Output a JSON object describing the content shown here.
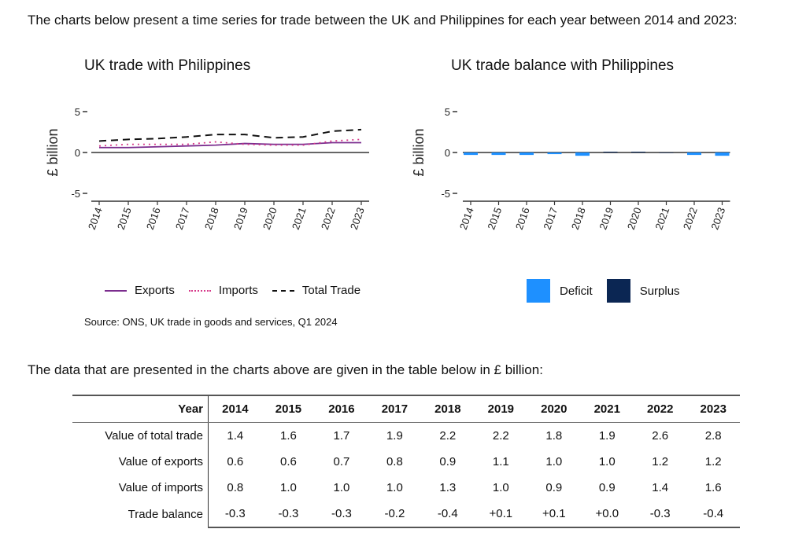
{
  "intro_text": "The charts below present a time series for trade between the UK and Philippines for each year between 2014 and 2023:",
  "chart1_title": "UK trade with Philippines",
  "chart2_title": "UK trade balance with Philippines",
  "chart_data": [
    {
      "type": "line",
      "title": "UK trade with Philippines",
      "xlabel": "",
      "ylabel": "£ billion",
      "ylim": [
        -5,
        5
      ],
      "yticks": [
        "5",
        "0",
        "-5"
      ],
      "grid": false,
      "legend_position": "bottom",
      "x": [
        "2014",
        "2015",
        "2016",
        "2017",
        "2018",
        "2019",
        "2020",
        "2021",
        "2022",
        "2023"
      ],
      "series": [
        {
          "name": "Exports",
          "values": [
            0.6,
            0.6,
            0.7,
            0.8,
            0.9,
            1.1,
            1.0,
            1.0,
            1.2,
            1.2
          ],
          "color": "#7b2d8e",
          "style": "solid"
        },
        {
          "name": "Imports",
          "values": [
            0.8,
            1.0,
            1.0,
            1.0,
            1.3,
            1.0,
            0.9,
            0.9,
            1.4,
            1.6
          ],
          "color": "#d63a8a",
          "style": "dotted"
        },
        {
          "name": "Total Trade",
          "values": [
            1.4,
            1.6,
            1.7,
            1.9,
            2.2,
            2.2,
            1.8,
            1.9,
            2.6,
            2.8
          ],
          "color": "#111111",
          "style": "dashed"
        }
      ]
    },
    {
      "type": "bar",
      "title": "UK trade balance with Philippines",
      "xlabel": "",
      "ylabel": "£ billion",
      "ylim": [
        -5,
        5
      ],
      "yticks": [
        "5",
        "0",
        "-5"
      ],
      "grid": false,
      "legend_position": "bottom",
      "categories": [
        "2014",
        "2015",
        "2016",
        "2017",
        "2018",
        "2019",
        "2020",
        "2021",
        "2022",
        "2023"
      ],
      "values": [
        -0.3,
        -0.3,
        -0.3,
        -0.2,
        -0.4,
        0.1,
        0.1,
        0.0,
        -0.3,
        -0.4
      ],
      "legend": [
        {
          "name": "Deficit",
          "color": "#1e90ff"
        },
        {
          "name": "Surplus",
          "color": "#0b2653"
        }
      ]
    }
  ],
  "source_text": "Source: ONS, UK trade in goods and services, Q1 2024",
  "table_intro": "The data that are presented in the charts above are given in the table below in £ billion:",
  "table": {
    "header_label": "Year",
    "years": [
      "2014",
      "2015",
      "2016",
      "2017",
      "2018",
      "2019",
      "2020",
      "2021",
      "2022",
      "2023"
    ],
    "rows": [
      {
        "label": "Value of total trade",
        "values": [
          "1.4",
          "1.6",
          "1.7",
          "1.9",
          "2.2",
          "2.2",
          "1.8",
          "1.9",
          "2.6",
          "2.8"
        ]
      },
      {
        "label": "Value of exports",
        "values": [
          "0.6",
          "0.6",
          "0.7",
          "0.8",
          "0.9",
          "1.1",
          "1.0",
          "1.0",
          "1.2",
          "1.2"
        ]
      },
      {
        "label": "Value of imports",
        "values": [
          "0.8",
          "1.0",
          "1.0",
          "1.0",
          "1.3",
          "1.0",
          "0.9",
          "0.9",
          "1.4",
          "1.6"
        ]
      },
      {
        "label": "Trade balance",
        "values": [
          "-0.3",
          "-0.3",
          "-0.3",
          "-0.2",
          "-0.4",
          "+0.1",
          "+0.1",
          "+0.0",
          "-0.3",
          "-0.4"
        ]
      }
    ]
  }
}
